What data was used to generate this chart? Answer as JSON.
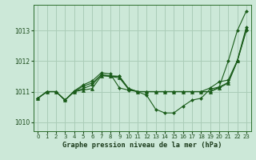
{
  "background_color": "#cce8d8",
  "grid_color": "#aaccb8",
  "line_color": "#1a5c1a",
  "marker_color": "#1a5c1a",
  "xlabel": "Graphe pression niveau de la mer (hPa)",
  "xlim": [
    -0.5,
    23.5
  ],
  "ylim": [
    1009.7,
    1013.85
  ],
  "yticks": [
    1010,
    1011,
    1012,
    1013
  ],
  "xticks": [
    0,
    1,
    2,
    3,
    4,
    5,
    6,
    7,
    8,
    9,
    10,
    11,
    12,
    13,
    14,
    15,
    16,
    17,
    18,
    19,
    20,
    21,
    22,
    23
  ],
  "series": [
    {
      "y": [
        1010.78,
        1011.0,
        1011.0,
        1010.72,
        1011.0,
        1011.1,
        1011.22,
        1011.56,
        1011.5,
        1011.5,
        1011.1,
        1011.0,
        1011.0,
        1011.0,
        1011.0,
        1011.0,
        1011.0,
        1011.0,
        1011.0,
        1011.0,
        1011.15,
        1011.3,
        1012.0,
        1013.0
      ],
      "marker": "D",
      "markersize": 2.0
    },
    {
      "y": [
        1010.78,
        1011.0,
        1011.0,
        1010.72,
        1011.02,
        1011.22,
        1011.35,
        1011.62,
        1011.58,
        1011.12,
        1011.05,
        1011.0,
        1010.88,
        1010.42,
        1010.3,
        1010.3,
        1010.52,
        1010.72,
        1010.78,
        1011.08,
        1011.15,
        1012.0,
        1013.0,
        1013.65
      ],
      "marker": "D",
      "markersize": 2.0
    },
    {
      "y": [
        1010.78,
        1011.0,
        1011.0,
        1010.72,
        1011.0,
        1011.18,
        1011.28,
        1011.55,
        1011.52,
        1011.5,
        1011.1,
        1011.0,
        1011.0,
        1011.0,
        1011.0,
        1011.0,
        1011.0,
        1011.0,
        1011.0,
        1011.12,
        1011.32,
        1011.38,
        1012.02,
        1013.12
      ],
      "marker": "D",
      "markersize": 2.0
    },
    {
      "y": [
        1010.78,
        1011.0,
        1011.0,
        1010.72,
        1011.0,
        1011.05,
        1011.1,
        1011.52,
        1011.5,
        1011.45,
        1011.08,
        1011.0,
        1011.0,
        1011.0,
        1011.0,
        1011.0,
        1011.0,
        1011.0,
        1011.0,
        1011.0,
        1011.12,
        1011.28,
        1012.0,
        1013.05
      ],
      "marker": "^",
      "markersize": 3.0
    }
  ]
}
